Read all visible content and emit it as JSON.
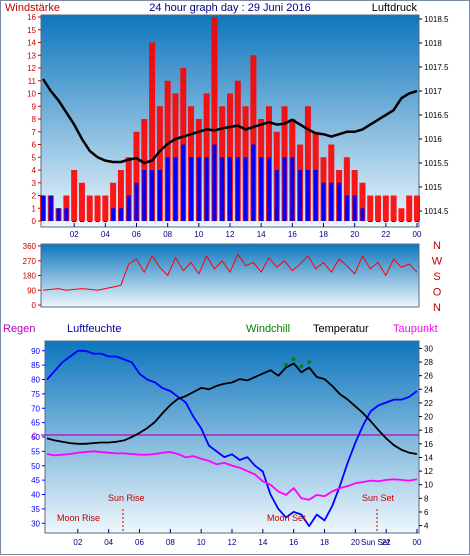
{
  "colors": {
    "plot_top": "#0e76bd",
    "plot_bottom": "#eef7fc",
    "wind_red": "#ff0000",
    "wind_blue": "#0000ff",
    "pressure": "#000000",
    "direction": "#ff0000",
    "humidity": "#0000ff",
    "temperature": "#000000",
    "windchill": "#008000",
    "dewpoint": "#ff00ff",
    "rain_line": "#c000c0",
    "axis_left": "#c00000",
    "axis_right": "#000000",
    "x_ticks": "#000080",
    "sun_moon": "#c00000"
  },
  "chart_data": [
    {
      "type": "line",
      "title": "24 hour graph day : 29 Juni 2016",
      "left_axis_label": "Windstärke",
      "right_axis_label": "Luftdruck",
      "x_ticks": [
        "02",
        "04",
        "06",
        "08",
        "10",
        "12",
        "14",
        "16",
        "18",
        "20",
        "22",
        "00"
      ],
      "left_ticks": [
        "0",
        "1",
        "2",
        "3",
        "4",
        "5",
        "6",
        "7",
        "8",
        "9",
        "10",
        "11",
        "12",
        "13",
        "14",
        "15",
        "16"
      ],
      "ylim_left": [
        0,
        16
      ],
      "right_ticks": [
        "1014.5",
        "1015",
        "1015.5",
        "1016",
        "1016.5",
        "1017",
        "1017.5",
        "1018",
        "1018.5"
      ],
      "ylim_right": [
        1014.5,
        1018.5
      ],
      "series": [
        {
          "name": "Luftdruck",
          "axis": "right",
          "x": [
            0,
            0.5,
            1,
            1.5,
            2,
            2.5,
            3,
            3.5,
            4,
            4.5,
            5,
            5.5,
            6,
            6.5,
            7,
            7.5,
            8,
            8.5,
            9,
            9.5,
            10,
            10.5,
            11,
            11.5,
            12,
            12.5,
            13,
            13.5,
            14,
            14.5,
            15,
            15.5,
            16,
            16.5,
            17,
            17.5,
            18,
            18.5,
            19,
            19.5,
            20,
            20.5,
            21,
            21.5,
            22,
            22.5,
            23,
            23.5,
            24
          ],
          "values": [
            1017.25,
            1017.0,
            1016.8,
            1016.55,
            1016.3,
            1016.0,
            1015.75,
            1015.62,
            1015.55,
            1015.52,
            1015.52,
            1015.57,
            1015.6,
            1015.5,
            1015.55,
            1015.75,
            1015.9,
            1016.0,
            1016.05,
            1016.1,
            1016.15,
            1016.2,
            1016.18,
            1016.22,
            1016.25,
            1016.28,
            1016.2,
            1016.25,
            1016.3,
            1016.35,
            1016.3,
            1016.32,
            1016.4,
            1016.3,
            1016.2,
            1016.12,
            1016.1,
            1016.05,
            1016.1,
            1016.15,
            1016.15,
            1016.2,
            1016.3,
            1016.4,
            1016.5,
            1016.6,
            1016.85,
            1016.95,
            1017.0
          ]
        },
        {
          "name": "Windstärke (Böen)",
          "axis": "left",
          "x": [
            0,
            0.5,
            1,
            1.5,
            2,
            2.5,
            3,
            3.5,
            4,
            4.5,
            5,
            5.5,
            6,
            6.5,
            7,
            7.5,
            8,
            8.5,
            9,
            9.5,
            10,
            10.5,
            11,
            11.5,
            12,
            12.5,
            13,
            13.5,
            14,
            14.5,
            15,
            15.5,
            16,
            16.5,
            17,
            17.5,
            18,
            18.5,
            19,
            19.5,
            20,
            20.5,
            21,
            21.5,
            22,
            22.5,
            23,
            23.5,
            24
          ],
          "values": [
            2,
            2,
            1,
            2,
            4,
            3,
            2,
            2,
            2,
            3,
            4,
            5,
            7,
            8,
            14,
            9,
            11,
            10,
            12,
            9,
            8,
            10,
            16,
            9,
            10,
            11,
            9,
            13,
            8,
            9,
            7,
            9,
            8,
            6,
            9,
            7,
            5,
            6,
            4,
            5,
            4,
            3,
            2,
            2,
            2,
            2,
            1,
            2,
            2
          ]
        },
        {
          "name": "Windstärke (Mittel)",
          "axis": "left",
          "x": [
            0,
            0.5,
            1,
            1.5,
            2,
            2.5,
            3,
            3.5,
            4,
            4.5,
            5,
            5.5,
            6,
            6.5,
            7,
            7.5,
            8,
            8.5,
            9,
            9.5,
            10,
            10.5,
            11,
            11.5,
            12,
            12.5,
            13,
            13.5,
            14,
            14.5,
            15,
            15.5,
            16,
            16.5,
            17,
            17.5,
            18,
            18.5,
            19,
            19.5,
            20,
            20.5,
            21,
            21.5,
            22,
            22.5,
            23,
            23.5,
            24
          ],
          "values": [
            2,
            2,
            1,
            1,
            0,
            0,
            0,
            0,
            0,
            1,
            1,
            2,
            3,
            4,
            4,
            4,
            5,
            5,
            6,
            5,
            5,
            5,
            6,
            5,
            5,
            5,
            5,
            6,
            5,
            5,
            4,
            5,
            5,
            4,
            4,
            4,
            3,
            3,
            3,
            2,
            2,
            1,
            0,
            0,
            0,
            0,
            0,
            0,
            0
          ]
        }
      ]
    },
    {
      "type": "line",
      "right_axis_label": [
        "N",
        "W",
        "S",
        "O",
        "N"
      ],
      "left_ticks": [
        "0",
        "90",
        "180",
        "270",
        "360"
      ],
      "ylim": [
        0,
        360
      ],
      "series": [
        {
          "name": "Windrichtung",
          "x": [
            0,
            0.5,
            1,
            1.5,
            2,
            2.5,
            3,
            3.5,
            4,
            4.5,
            5,
            5.5,
            6,
            6.5,
            7,
            7.5,
            8,
            8.5,
            9,
            9.5,
            10,
            10.5,
            11,
            11.5,
            12,
            12.5,
            13,
            13.5,
            14,
            14.5,
            15,
            15.5,
            16,
            16.5,
            17,
            17.5,
            18,
            18.5,
            19,
            19.5,
            20,
            20.5,
            21,
            21.5,
            22,
            22.5,
            23,
            23.5,
            24
          ],
          "values": [
            90,
            95,
            100,
            90,
            95,
            100,
            95,
            90,
            100,
            110,
            120,
            250,
            280,
            200,
            300,
            230,
            180,
            290,
            210,
            260,
            190,
            300,
            220,
            270,
            200,
            310,
            240,
            260,
            200,
            290,
            230,
            270,
            210,
            250,
            300,
            220,
            260,
            200,
            280,
            240,
            190,
            300,
            220,
            260,
            180,
            280,
            230,
            250,
            200
          ]
        }
      ]
    },
    {
      "type": "line",
      "labels": {
        "rain": "Regen",
        "humidity": "Luftfeuchte",
        "windchill": "Windchill",
        "temperature": "Temperatur",
        "dewpoint": "Taupunkt"
      },
      "x_ticks": [
        "02",
        "04",
        "06",
        "08",
        "10",
        "12",
        "14",
        "16",
        "18",
        "20",
        "22",
        "00"
      ],
      "left_ticks": [
        "30",
        "35",
        "40",
        "45",
        "50",
        "55",
        "60",
        "65",
        "70",
        "75",
        "80",
        "85",
        "90"
      ],
      "ylim_left": [
        28,
        92
      ],
      "right_ticks": [
        "4",
        "6",
        "8",
        "10",
        "12",
        "14",
        "16",
        "18",
        "20",
        "22",
        "24",
        "26",
        "28",
        "30"
      ],
      "ylim_right": [
        3.5,
        30.5
      ],
      "rain_value_label": "0",
      "rain_value": 0,
      "annotations": {
        "moon_rise": "Moon Rise",
        "sun_rise": "Sun Rise",
        "moon_set": "Moon Set",
        "sun_set": "Sun Set",
        "set_time_label": "Sun Set"
      },
      "series": [
        {
          "name": "Luftfeuchte",
          "axis": "left",
          "x": [
            0,
            0.5,
            1,
            1.5,
            2,
            2.5,
            3,
            3.5,
            4,
            4.5,
            5,
            5.5,
            6,
            6.5,
            7,
            7.5,
            8,
            8.5,
            9,
            9.5,
            10,
            10.5,
            11,
            11.5,
            12,
            12.5,
            13,
            13.5,
            14,
            14.5,
            15,
            15.5,
            16,
            16.5,
            17,
            17.5,
            18,
            18.5,
            19,
            19.5,
            20,
            20.5,
            21,
            21.5,
            22,
            22.5,
            23,
            23.5,
            24
          ],
          "values": [
            80,
            83,
            86,
            88,
            90,
            90,
            89,
            89,
            88,
            88,
            87,
            86,
            82,
            80,
            79,
            77,
            76,
            74,
            72,
            67,
            63,
            57,
            55,
            53,
            54,
            52,
            53,
            50,
            48,
            40,
            35,
            32,
            34,
            33,
            29,
            33,
            31,
            36,
            43,
            51,
            58,
            64,
            69,
            71,
            72,
            73,
            73,
            74,
            76
          ]
        },
        {
          "name": "Temperatur",
          "axis": "right",
          "x": [
            0,
            0.5,
            1,
            1.5,
            2,
            2.5,
            3,
            3.5,
            4,
            4.5,
            5,
            5.5,
            6,
            6.5,
            7,
            7.5,
            8,
            8.5,
            9,
            9.5,
            10,
            10.5,
            11,
            11.5,
            12,
            12.5,
            13,
            13.5,
            14,
            14.5,
            15,
            15.5,
            16,
            16.5,
            17,
            17.5,
            18,
            18.5,
            19,
            19.5,
            20,
            20.5,
            21,
            21.5,
            22,
            22.5,
            23,
            23.5,
            24
          ],
          "values": [
            16.8,
            16.5,
            16.3,
            16.1,
            16.0,
            16.0,
            16.1,
            16.2,
            16.2,
            16.3,
            16.5,
            17.0,
            17.6,
            18.3,
            19.2,
            20.5,
            21.7,
            22.6,
            23.0,
            23.6,
            24.2,
            24.0,
            24.5,
            24.8,
            25.0,
            25.5,
            25.3,
            25.8,
            26.3,
            26.8,
            26.0,
            27.2,
            27.8,
            26.5,
            27.2,
            25.8,
            25.5,
            24.5,
            23.3,
            22.5,
            21.5,
            20.5,
            19.3,
            18.0,
            16.8,
            15.8,
            15.1,
            14.7,
            14.5
          ]
        },
        {
          "name": "Taupunkt",
          "axis": "right",
          "x": [
            0,
            0.5,
            1,
            1.5,
            2,
            2.5,
            3,
            3.5,
            4,
            4.5,
            5,
            5.5,
            6,
            6.5,
            7,
            7.5,
            8,
            8.5,
            9,
            9.5,
            10,
            10.5,
            11,
            11.5,
            12,
            12.5,
            13,
            13.5,
            14,
            14.5,
            15,
            15.5,
            16,
            16.5,
            17,
            17.5,
            18,
            18.5,
            19,
            19.5,
            20,
            20.5,
            21,
            21.5,
            22,
            22.5,
            23,
            23.5,
            24
          ],
          "values": [
            14.5,
            14.3,
            14.4,
            14.5,
            14.7,
            14.8,
            14.9,
            14.8,
            14.7,
            14.6,
            14.6,
            14.5,
            14.4,
            14.4,
            14.5,
            14.7,
            14.8,
            14.5,
            14.0,
            14.2,
            13.8,
            13.5,
            13.0,
            13.2,
            12.8,
            12.5,
            12.0,
            11.5,
            10.5,
            10.0,
            9.0,
            8.5,
            9.5,
            8.0,
            7.8,
            8.5,
            8.3,
            9.0,
            9.5,
            9.8,
            10.2,
            10.4,
            10.6,
            10.5,
            10.7,
            10.8,
            10.7,
            10.6,
            10.8
          ]
        },
        {
          "name": "Windchill",
          "axis": "right",
          "x": [
            15.5,
            16,
            16.5,
            17
          ],
          "values": [
            27.6,
            28.4,
            27.4,
            28.0
          ]
        }
      ]
    }
  ]
}
